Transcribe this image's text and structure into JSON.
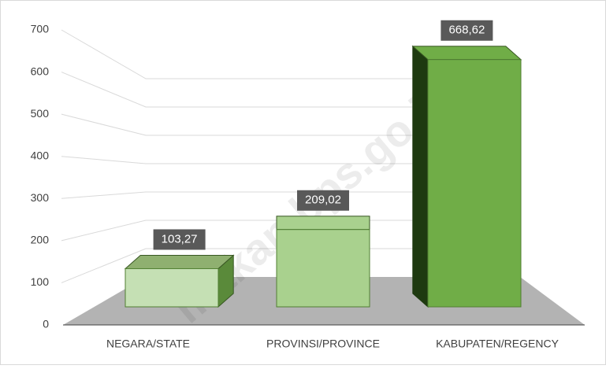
{
  "chart_data": {
    "type": "bar3d",
    "categories": [
      "NEGARA/STATE",
      "PROVINSI/PROVINCE",
      "KABUPATEN/REGENCY"
    ],
    "values": [
      103.27,
      209.02,
      668.62
    ],
    "value_labels": [
      "103,27",
      "209,02",
      "668,62"
    ],
    "colors": [
      "#c5e0b4",
      "#a9d18e",
      "#70ad47"
    ],
    "ylim": [
      0,
      700
    ],
    "yticks": [
      0,
      100,
      200,
      300,
      400,
      500,
      600,
      700
    ],
    "grid": true,
    "watermark": "makap.bps.go.id"
  }
}
